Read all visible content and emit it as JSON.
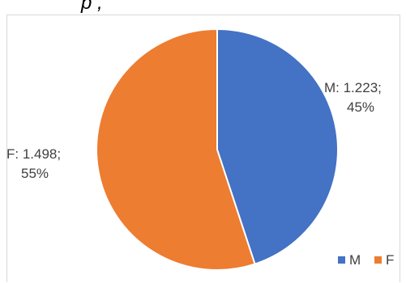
{
  "header_fragment": "p                              ,",
  "chart_data": {
    "type": "pie",
    "categories": [
      "M",
      "F"
    ],
    "values": [
      1.223,
      1.498
    ],
    "percent_labels": [
      "45%",
      "55%"
    ],
    "data_labels": [
      "M: 1.223;",
      "F: 1.498;"
    ],
    "colors": [
      "#4472C4",
      "#ED7D31"
    ],
    "legend": {
      "position": "bottom-right",
      "entries": [
        "M",
        "F"
      ]
    }
  }
}
